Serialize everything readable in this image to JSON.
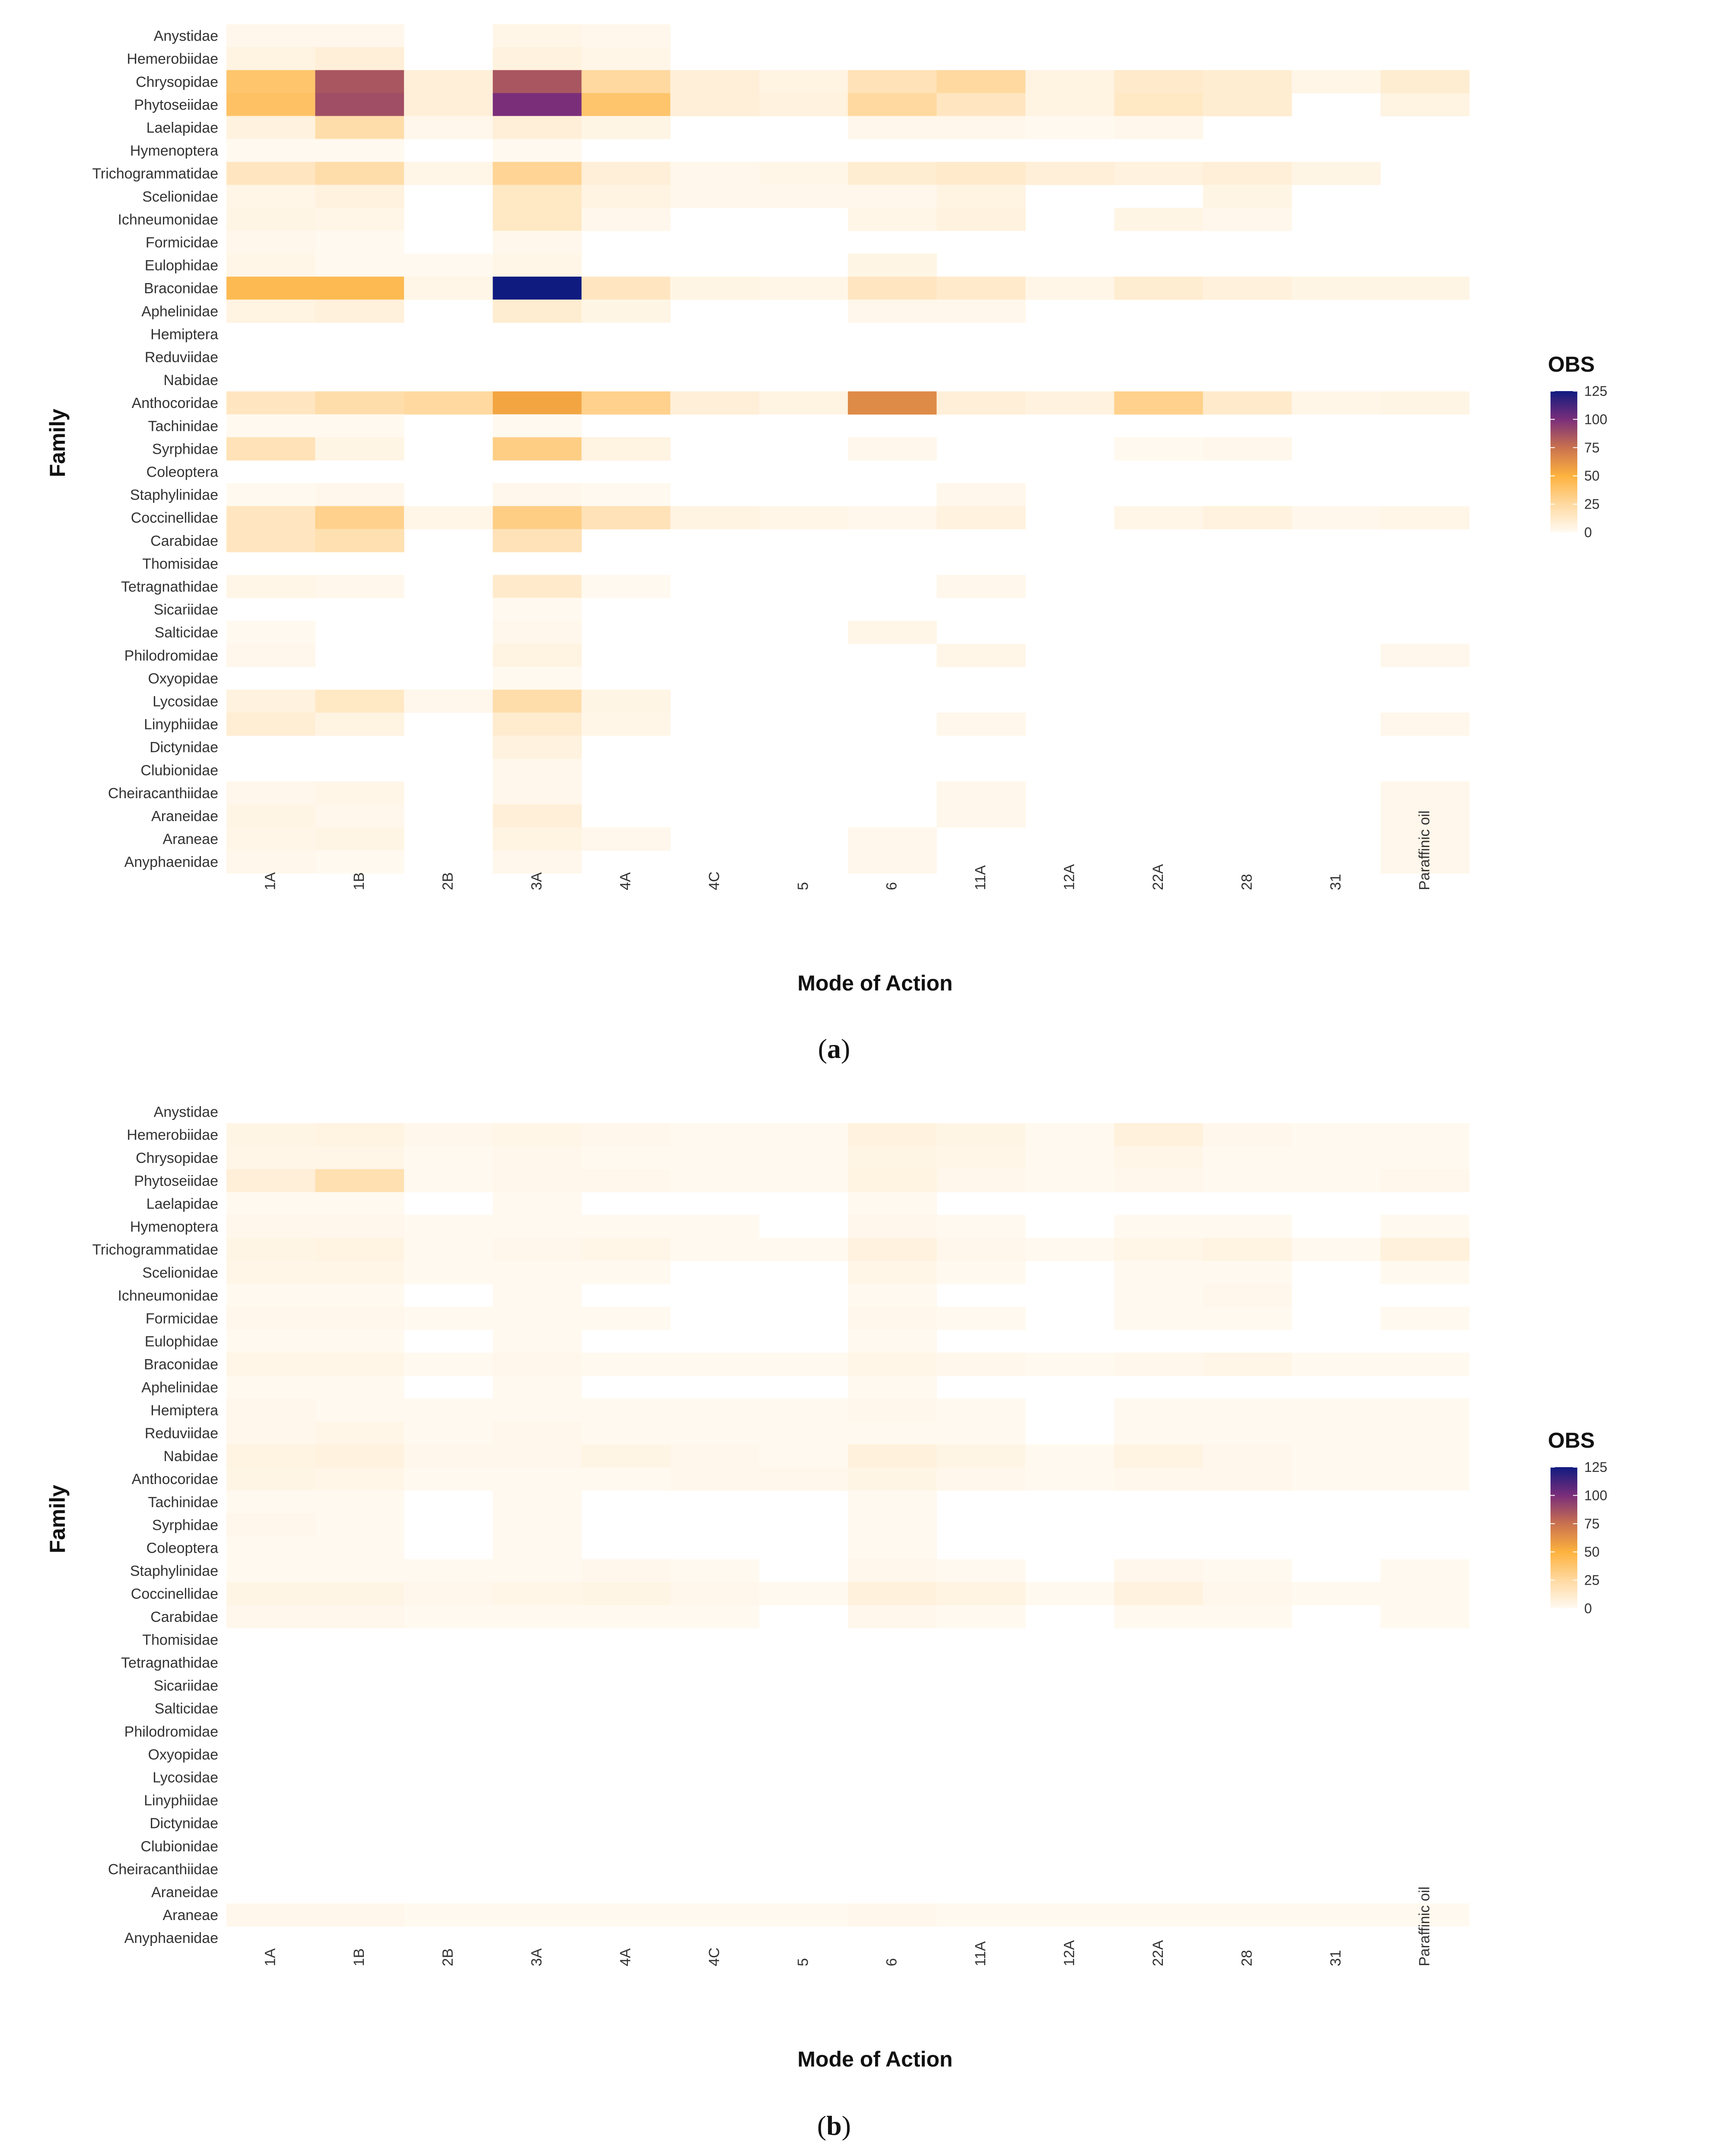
{
  "chart_data": [
    {
      "type": "heatmap",
      "panel": "a",
      "caption": {
        "open": "(",
        "letter": "a",
        "close": ")"
      },
      "xlabel": "Mode of Action",
      "ylabel": "Family",
      "legend": {
        "title": "OBS",
        "ticks": [
          0,
          25,
          50,
          75,
          100,
          125
        ],
        "range": [
          0,
          125
        ]
      },
      "rows": [
        "Anystidae",
        "Hemerobiidae",
        "Chrysopidae",
        "Phytoseiidae",
        "Laelapidae",
        "Hymenoptera",
        "Trichogrammatidae",
        "Scelionidae",
        "Ichneumonidae",
        "Formicidae",
        "Eulophidae",
        "Braconidae",
        "Aphelinidae",
        "Hemiptera",
        "Reduviidae",
        "Nabidae",
        "Anthocoridae",
        "Tachinidae",
        "Syrphidae",
        "Coleoptera",
        "Staphylinidae",
        "Coccinellidae",
        "Carabidae",
        "Thomisidae",
        "Tetragnathidae",
        "Sicariidae",
        "Salticidae",
        "Philodromidae",
        "Oxyopidae",
        "Lycosidae",
        "Linyphiidae",
        "Dictynidae",
        "Clubionidae",
        "Cheiracanthiidae",
        "Araneidae",
        "Araneae",
        "Anyphaenidae"
      ],
      "columns": [
        "1A",
        "1B",
        "2B",
        "3A",
        "4A",
        "4C",
        "5",
        "6",
        "11A",
        "12A",
        "22A",
        "28",
        "31",
        "Paraffinic oil"
      ],
      "values": [
        [
          2,
          2,
          null,
          3,
          2,
          null,
          null,
          null,
          null,
          null,
          null,
          null,
          null,
          null
        ],
        [
          5,
          8,
          null,
          6,
          3,
          null,
          null,
          null,
          null,
          null,
          null,
          null,
          null,
          null
        ],
        [
          38,
          85,
          8,
          85,
          25,
          8,
          5,
          18,
          25,
          5,
          12,
          10,
          3,
          10
        ],
        [
          40,
          88,
          8,
          100,
          38,
          8,
          6,
          25,
          15,
          5,
          14,
          10,
          null,
          5
        ],
        [
          6,
          22,
          2,
          8,
          4,
          null,
          null,
          2,
          2,
          1,
          2,
          null,
          null,
          null
        ],
        [
          1,
          1,
          null,
          1,
          null,
          null,
          null,
          null,
          null,
          null,
          null,
          null,
          null,
          null
        ],
        [
          15,
          22,
          3,
          28,
          8,
          2,
          3,
          10,
          12,
          8,
          6,
          8,
          4,
          null
        ],
        [
          3,
          6,
          null,
          14,
          5,
          2,
          2,
          2,
          5,
          null,
          null,
          4,
          null,
          null
        ],
        [
          4,
          3,
          null,
          14,
          2,
          null,
          null,
          3,
          6,
          null,
          4,
          2,
          null,
          null
        ],
        [
          2,
          1,
          null,
          2,
          null,
          null,
          null,
          null,
          null,
          null,
          null,
          null,
          null,
          null
        ],
        [
          3,
          1,
          1,
          3,
          null,
          null,
          null,
          4,
          null,
          null,
          null,
          null,
          null,
          null
        ],
        [
          45,
          45,
          3,
          125,
          15,
          4,
          3,
          15,
          12,
          3,
          10,
          7,
          4,
          4
        ],
        [
          5,
          7,
          null,
          10,
          4,
          null,
          null,
          2,
          2,
          null,
          null,
          null,
          null,
          null
        ],
        [
          null,
          null,
          null,
          null,
          null,
          null,
          null,
          null,
          null,
          null,
          null,
          null,
          null,
          null
        ],
        [
          null,
          null,
          null,
          null,
          null,
          null,
          null,
          null,
          null,
          null,
          null,
          null,
          null,
          null
        ],
        [
          null,
          null,
          null,
          null,
          null,
          null,
          null,
          null,
          null,
          null,
          null,
          null,
          null,
          null
        ],
        [
          15,
          22,
          25,
          55,
          30,
          8,
          5,
          65,
          8,
          6,
          30,
          12,
          3,
          4
        ],
        [
          1,
          1,
          null,
          1,
          null,
          null,
          null,
          null,
          null,
          null,
          null,
          null,
          null,
          null
        ],
        [
          18,
          4,
          null,
          32,
          5,
          null,
          null,
          2,
          null,
          null,
          1,
          2,
          null,
          null
        ],
        [
          null,
          null,
          null,
          null,
          null,
          null,
          null,
          null,
          null,
          null,
          null,
          null,
          null,
          null
        ],
        [
          1,
          2,
          null,
          2,
          1,
          null,
          null,
          null,
          2,
          null,
          null,
          null,
          null,
          null
        ],
        [
          15,
          30,
          3,
          32,
          18,
          5,
          3,
          2,
          6,
          null,
          3,
          6,
          2,
          3
        ],
        [
          15,
          20,
          null,
          18,
          null,
          null,
          null,
          null,
          null,
          null,
          null,
          null,
          null,
          null
        ],
        [
          null,
          null,
          null,
          null,
          null,
          null,
          null,
          null,
          null,
          null,
          null,
          null,
          null,
          null
        ],
        [
          3,
          2,
          null,
          12,
          1,
          null,
          null,
          null,
          2,
          null,
          null,
          null,
          null,
          null
        ],
        [
          null,
          null,
          null,
          1,
          null,
          null,
          null,
          null,
          null,
          null,
          null,
          null,
          null,
          null
        ],
        [
          1,
          null,
          null,
          2,
          null,
          null,
          null,
          3,
          null,
          null,
          null,
          null,
          null,
          null
        ],
        [
          2,
          null,
          null,
          5,
          null,
          null,
          null,
          null,
          3,
          null,
          null,
          null,
          null,
          2
        ],
        [
          null,
          null,
          null,
          1,
          null,
          null,
          null,
          null,
          null,
          null,
          null,
          null,
          null,
          null
        ],
        [
          6,
          14,
          2,
          22,
          4,
          null,
          null,
          null,
          null,
          null,
          null,
          null,
          null,
          null
        ],
        [
          9,
          5,
          null,
          11,
          3,
          null,
          null,
          null,
          2,
          null,
          null,
          null,
          null,
          2
        ],
        [
          null,
          null,
          null,
          6,
          null,
          null,
          null,
          null,
          null,
          null,
          null,
          null,
          null,
          null
        ],
        [
          null,
          null,
          null,
          2,
          null,
          null,
          null,
          null,
          null,
          null,
          null,
          null,
          null,
          null
        ],
        [
          2,
          3,
          null,
          2,
          null,
          null,
          null,
          null,
          2,
          null,
          null,
          null,
          null,
          2
        ],
        [
          4,
          2,
          null,
          8,
          null,
          null,
          null,
          null,
          2,
          null,
          null,
          null,
          null,
          2
        ],
        [
          3,
          4,
          null,
          5,
          2,
          null,
          null,
          2,
          null,
          null,
          null,
          null,
          null,
          2
        ],
        [
          2,
          1,
          null,
          2,
          null,
          null,
          null,
          2,
          null,
          null,
          null,
          null,
          null,
          2
        ]
      ]
    },
    {
      "type": "heatmap",
      "panel": "b",
      "caption": {
        "open": "(",
        "letter": "b",
        "close": ")"
      },
      "xlabel": "Mode of Action",
      "ylabel": "Family",
      "legend": {
        "title": "OBS",
        "ticks": [
          0,
          25,
          50,
          75,
          100,
          125
        ],
        "range": [
          0,
          125
        ]
      },
      "rows": [
        "Anystidae",
        "Hemerobiidae",
        "Chrysopidae",
        "Phytoseiidae",
        "Laelapidae",
        "Hymenoptera",
        "Trichogrammatidae",
        "Scelionidae",
        "Ichneumonidae",
        "Formicidae",
        "Eulophidae",
        "Braconidae",
        "Aphelinidae",
        "Hemiptera",
        "Reduviidae",
        "Nabidae",
        "Anthocoridae",
        "Tachinidae",
        "Syrphidae",
        "Coleoptera",
        "Staphylinidae",
        "Coccinellidae",
        "Carabidae",
        "Thomisidae",
        "Tetragnathidae",
        "Sicariidae",
        "Salticidae",
        "Philodromidae",
        "Oxyopidae",
        "Lycosidae",
        "Linyphiidae",
        "Dictynidae",
        "Clubionidae",
        "Cheiracanthiidae",
        "Araneidae",
        "Araneae",
        "Anyphaenidae"
      ],
      "columns": [
        "1A",
        "1B",
        "2B",
        "3A",
        "4A",
        "4C",
        "5",
        "6",
        "11A",
        "12A",
        "22A",
        "28",
        "31",
        "Paraffinic oil"
      ],
      "values": [
        [
          null,
          null,
          null,
          null,
          null,
          null,
          null,
          null,
          null,
          null,
          null,
          null,
          null,
          null
        ],
        [
          4,
          5,
          2,
          3,
          2,
          1,
          1,
          6,
          4,
          1,
          7,
          2,
          1,
          1
        ],
        [
          3,
          3,
          1,
          2,
          1,
          1,
          1,
          4,
          3,
          1,
          3,
          1,
          1,
          1
        ],
        [
          8,
          20,
          1,
          2,
          2,
          1,
          1,
          5,
          2,
          1,
          2,
          1,
          1,
          2
        ],
        [
          1,
          1,
          null,
          1,
          null,
          null,
          null,
          1,
          null,
          null,
          null,
          null,
          null,
          null
        ],
        [
          2,
          2,
          1,
          1,
          1,
          1,
          null,
          2,
          1,
          null,
          1,
          1,
          null,
          1
        ],
        [
          4,
          5,
          1,
          2,
          3,
          1,
          1,
          6,
          2,
          1,
          3,
          5,
          1,
          7
        ],
        [
          3,
          3,
          1,
          1,
          1,
          null,
          null,
          3,
          1,
          null,
          1,
          1,
          null,
          1
        ],
        [
          1,
          1,
          null,
          1,
          null,
          null,
          null,
          1,
          null,
          null,
          1,
          2,
          null,
          null
        ],
        [
          2,
          2,
          1,
          1,
          1,
          null,
          null,
          2,
          1,
          null,
          1,
          1,
          null,
          1
        ],
        [
          1,
          1,
          null,
          1,
          null,
          null,
          null,
          1,
          null,
          null,
          null,
          null,
          null,
          null
        ],
        [
          3,
          3,
          1,
          2,
          1,
          1,
          1,
          3,
          2,
          1,
          2,
          3,
          1,
          1
        ],
        [
          1,
          1,
          null,
          1,
          null,
          null,
          null,
          1,
          null,
          null,
          null,
          null,
          null,
          null
        ],
        [
          2,
          1,
          1,
          1,
          1,
          1,
          1,
          2,
          1,
          null,
          1,
          1,
          1,
          1
        ],
        [
          2,
          3,
          1,
          2,
          1,
          1,
          1,
          1,
          1,
          null,
          1,
          1,
          1,
          1
        ],
        [
          5,
          6,
          2,
          2,
          4,
          2,
          1,
          7,
          4,
          1,
          5,
          2,
          1,
          1
        ],
        [
          4,
          3,
          1,
          1,
          1,
          2,
          2,
          4,
          2,
          1,
          2,
          2,
          1,
          1
        ],
        [
          1,
          1,
          null,
          1,
          null,
          null,
          null,
          1,
          null,
          null,
          null,
          null,
          null,
          null
        ],
        [
          2,
          1,
          null,
          1,
          null,
          null,
          null,
          1,
          null,
          null,
          null,
          null,
          null,
          null
        ],
        [
          1,
          1,
          null,
          1,
          null,
          null,
          null,
          1,
          null,
          null,
          null,
          null,
          null,
          null
        ],
        [
          1,
          1,
          1,
          1,
          2,
          1,
          null,
          2,
          1,
          null,
          2,
          1,
          null,
          1
        ],
        [
          4,
          4,
          2,
          3,
          4,
          2,
          1,
          7,
          5,
          1,
          6,
          2,
          1,
          1
        ],
        [
          2,
          2,
          1,
          1,
          1,
          1,
          null,
          2,
          1,
          null,
          1,
          1,
          null,
          1
        ],
        [
          null,
          null,
          null,
          null,
          null,
          null,
          null,
          null,
          null,
          null,
          null,
          null,
          null,
          null
        ],
        [
          null,
          null,
          null,
          null,
          null,
          null,
          null,
          null,
          null,
          null,
          null,
          null,
          null,
          null
        ],
        [
          null,
          null,
          null,
          null,
          null,
          null,
          null,
          null,
          null,
          null,
          null,
          null,
          null,
          null
        ],
        [
          null,
          null,
          null,
          null,
          null,
          null,
          null,
          null,
          null,
          null,
          null,
          null,
          null,
          null
        ],
        [
          null,
          null,
          null,
          null,
          null,
          null,
          null,
          null,
          null,
          null,
          null,
          null,
          null,
          null
        ],
        [
          null,
          null,
          null,
          null,
          null,
          null,
          null,
          null,
          null,
          null,
          null,
          null,
          null,
          null
        ],
        [
          null,
          null,
          null,
          null,
          null,
          null,
          null,
          null,
          null,
          null,
          null,
          null,
          null,
          null
        ],
        [
          null,
          null,
          null,
          null,
          null,
          null,
          null,
          null,
          null,
          null,
          null,
          null,
          null,
          null
        ],
        [
          null,
          null,
          null,
          null,
          null,
          null,
          null,
          null,
          null,
          null,
          null,
          null,
          null,
          null
        ],
        [
          null,
          null,
          null,
          null,
          null,
          null,
          null,
          null,
          null,
          null,
          null,
          null,
          null,
          null
        ],
        [
          null,
          null,
          null,
          null,
          null,
          null,
          null,
          null,
          null,
          null,
          null,
          null,
          null,
          null
        ],
        [
          null,
          null,
          null,
          null,
          null,
          null,
          null,
          null,
          null,
          null,
          null,
          null,
          null,
          null
        ],
        [
          2,
          2,
          1,
          1,
          1,
          1,
          1,
          2,
          1,
          1,
          1,
          1,
          1,
          1
        ],
        [
          null,
          null,
          null,
          null,
          null,
          null,
          null,
          null,
          null,
          null,
          null,
          null,
          null,
          null
        ]
      ]
    }
  ]
}
